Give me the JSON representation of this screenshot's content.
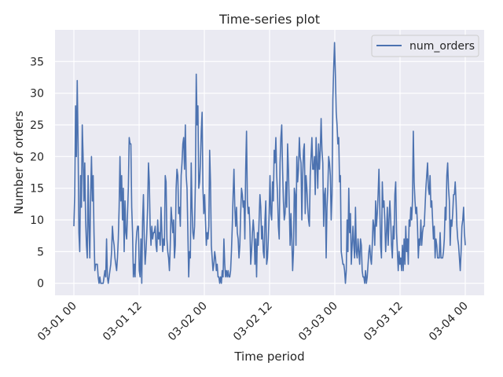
{
  "chart_data": {
    "type": "line",
    "title": "Time-series plot",
    "xlabel": "Time period",
    "ylabel": "Number of orders",
    "x_tick_labels": [
      "03-01 00",
      "03-01 12",
      "03-02 00",
      "03-02 12",
      "03-03 00",
      "03-03 12",
      "03-04 00"
    ],
    "y_ticks": [
      0,
      5,
      10,
      15,
      20,
      25,
      30,
      35
    ],
    "xlim": [
      "02-29 21",
      "03-04 03"
    ],
    "ylim": [
      -1.9,
      40.0
    ],
    "x_start": "03-01 00",
    "x_end": "03-04 00",
    "grid": true,
    "legend_position": "top-right",
    "colors": {
      "background": "#eaeaf2",
      "grid": "#ffffff",
      "line": "#4c72b0",
      "text": "#262626"
    },
    "series": [
      {
        "name": "num_orders",
        "values": [
          9,
          14,
          28,
          20,
          32,
          22,
          8,
          5,
          17,
          12,
          25,
          20,
          13,
          19,
          10,
          6,
          4,
          17,
          9,
          4,
          14,
          20,
          13,
          17,
          8,
          2,
          3,
          3,
          3,
          1,
          0,
          1,
          0,
          0,
          0,
          0,
          1,
          2,
          1,
          7,
          1,
          0,
          1,
          2,
          3,
          5,
          9,
          7,
          6,
          4,
          3,
          2,
          4,
          7,
          12,
          20,
          13,
          17,
          10,
          15,
          5,
          13,
          8,
          7,
          11,
          15,
          23,
          22,
          22,
          12,
          8,
          1,
          3,
          1,
          6,
          8,
          9,
          9,
          2,
          1,
          7,
          0,
          10,
          14,
          7,
          3,
          5,
          8,
          12,
          19,
          16,
          9,
          6,
          9,
          7,
          8,
          8,
          9,
          6,
          5,
          10,
          7,
          8,
          6,
          12,
          8,
          5,
          7,
          6,
          17,
          16,
          7,
          5,
          4,
          2,
          6,
          12,
          10,
          8,
          10,
          4,
          6,
          15,
          18,
          17,
          11,
          12,
          9,
          17,
          19,
          22,
          23,
          18,
          25,
          17,
          15,
          8,
          1,
          5,
          4,
          19,
          12,
          8,
          7,
          9,
          16,
          33,
          25,
          28,
          15,
          16,
          19,
          24,
          27,
          15,
          11,
          14,
          10,
          6,
          8,
          7,
          9,
          21,
          16,
          6,
          4,
          2,
          3,
          5,
          4,
          2,
          3,
          1,
          1,
          0,
          1,
          0,
          2,
          1,
          7,
          3,
          1,
          2,
          1,
          2,
          1,
          1,
          2,
          5,
          9,
          14,
          18,
          12,
          9,
          12,
          8,
          7,
          4,
          6,
          11,
          15,
          14,
          12,
          13,
          7,
          18,
          24,
          13,
          11,
          12,
          9,
          3,
          5,
          8,
          10,
          8,
          3,
          7,
          1,
          8,
          6,
          10,
          14,
          12,
          7,
          9,
          5,
          4,
          10,
          13,
          3,
          4,
          7,
          11,
          17,
          11,
          10,
          16,
          13,
          21,
          19,
          23,
          17,
          14,
          9,
          7,
          19,
          23,
          25,
          18,
          13,
          10,
          11,
          16,
          12,
          22,
          18,
          12,
          6,
          11,
          7,
          2,
          5,
          15,
          14,
          6,
          20,
          16,
          18,
          23,
          20,
          19,
          10,
          17,
          21,
          22,
          11,
          17,
          15,
          12,
          10,
          9,
          17,
          20,
          23,
          18,
          18,
          20,
          14,
          23,
          19,
          15,
          22,
          18,
          21,
          26,
          21,
          19,
          9,
          14,
          15,
          4,
          12,
          15,
          20,
          19,
          17,
          10,
          14,
          29,
          34,
          38,
          33,
          27,
          25,
          22,
          23,
          16,
          17,
          5,
          4,
          3,
          3,
          2,
          0,
          2,
          10,
          5,
          15,
          8,
          11,
          3,
          6,
          9,
          6,
          4,
          12,
          5,
          4,
          7,
          5,
          3,
          7,
          6,
          2,
          1,
          1,
          0,
          2,
          0,
          1,
          3,
          5,
          6,
          4,
          3,
          6,
          10,
          9,
          6,
          13,
          9,
          11,
          14,
          18,
          12,
          6,
          4,
          16,
          12,
          13,
          10,
          5,
          8,
          12,
          6,
          10,
          13,
          10,
          6,
          4,
          9,
          7,
          14,
          16,
          8,
          5,
          2,
          5,
          3,
          4,
          2,
          6,
          2,
          7,
          3,
          9,
          5,
          7,
          3,
          10,
          9,
          12,
          10,
          13,
          24,
          16,
          13,
          11,
          12,
          9,
          4,
          7,
          6,
          10,
          6,
          8,
          9,
          9,
          12,
          15,
          17,
          19,
          15,
          14,
          17,
          12,
          13,
          10,
          7,
          9,
          4,
          7,
          6,
          4,
          4,
          4,
          8,
          4,
          4,
          4,
          5,
          7,
          12,
          10,
          17,
          19,
          15,
          13,
          6,
          10,
          9,
          11,
          14,
          14,
          16,
          13,
          9,
          7,
          6,
          4,
          2,
          5,
          9,
          10,
          12,
          8,
          6
        ]
      }
    ]
  }
}
